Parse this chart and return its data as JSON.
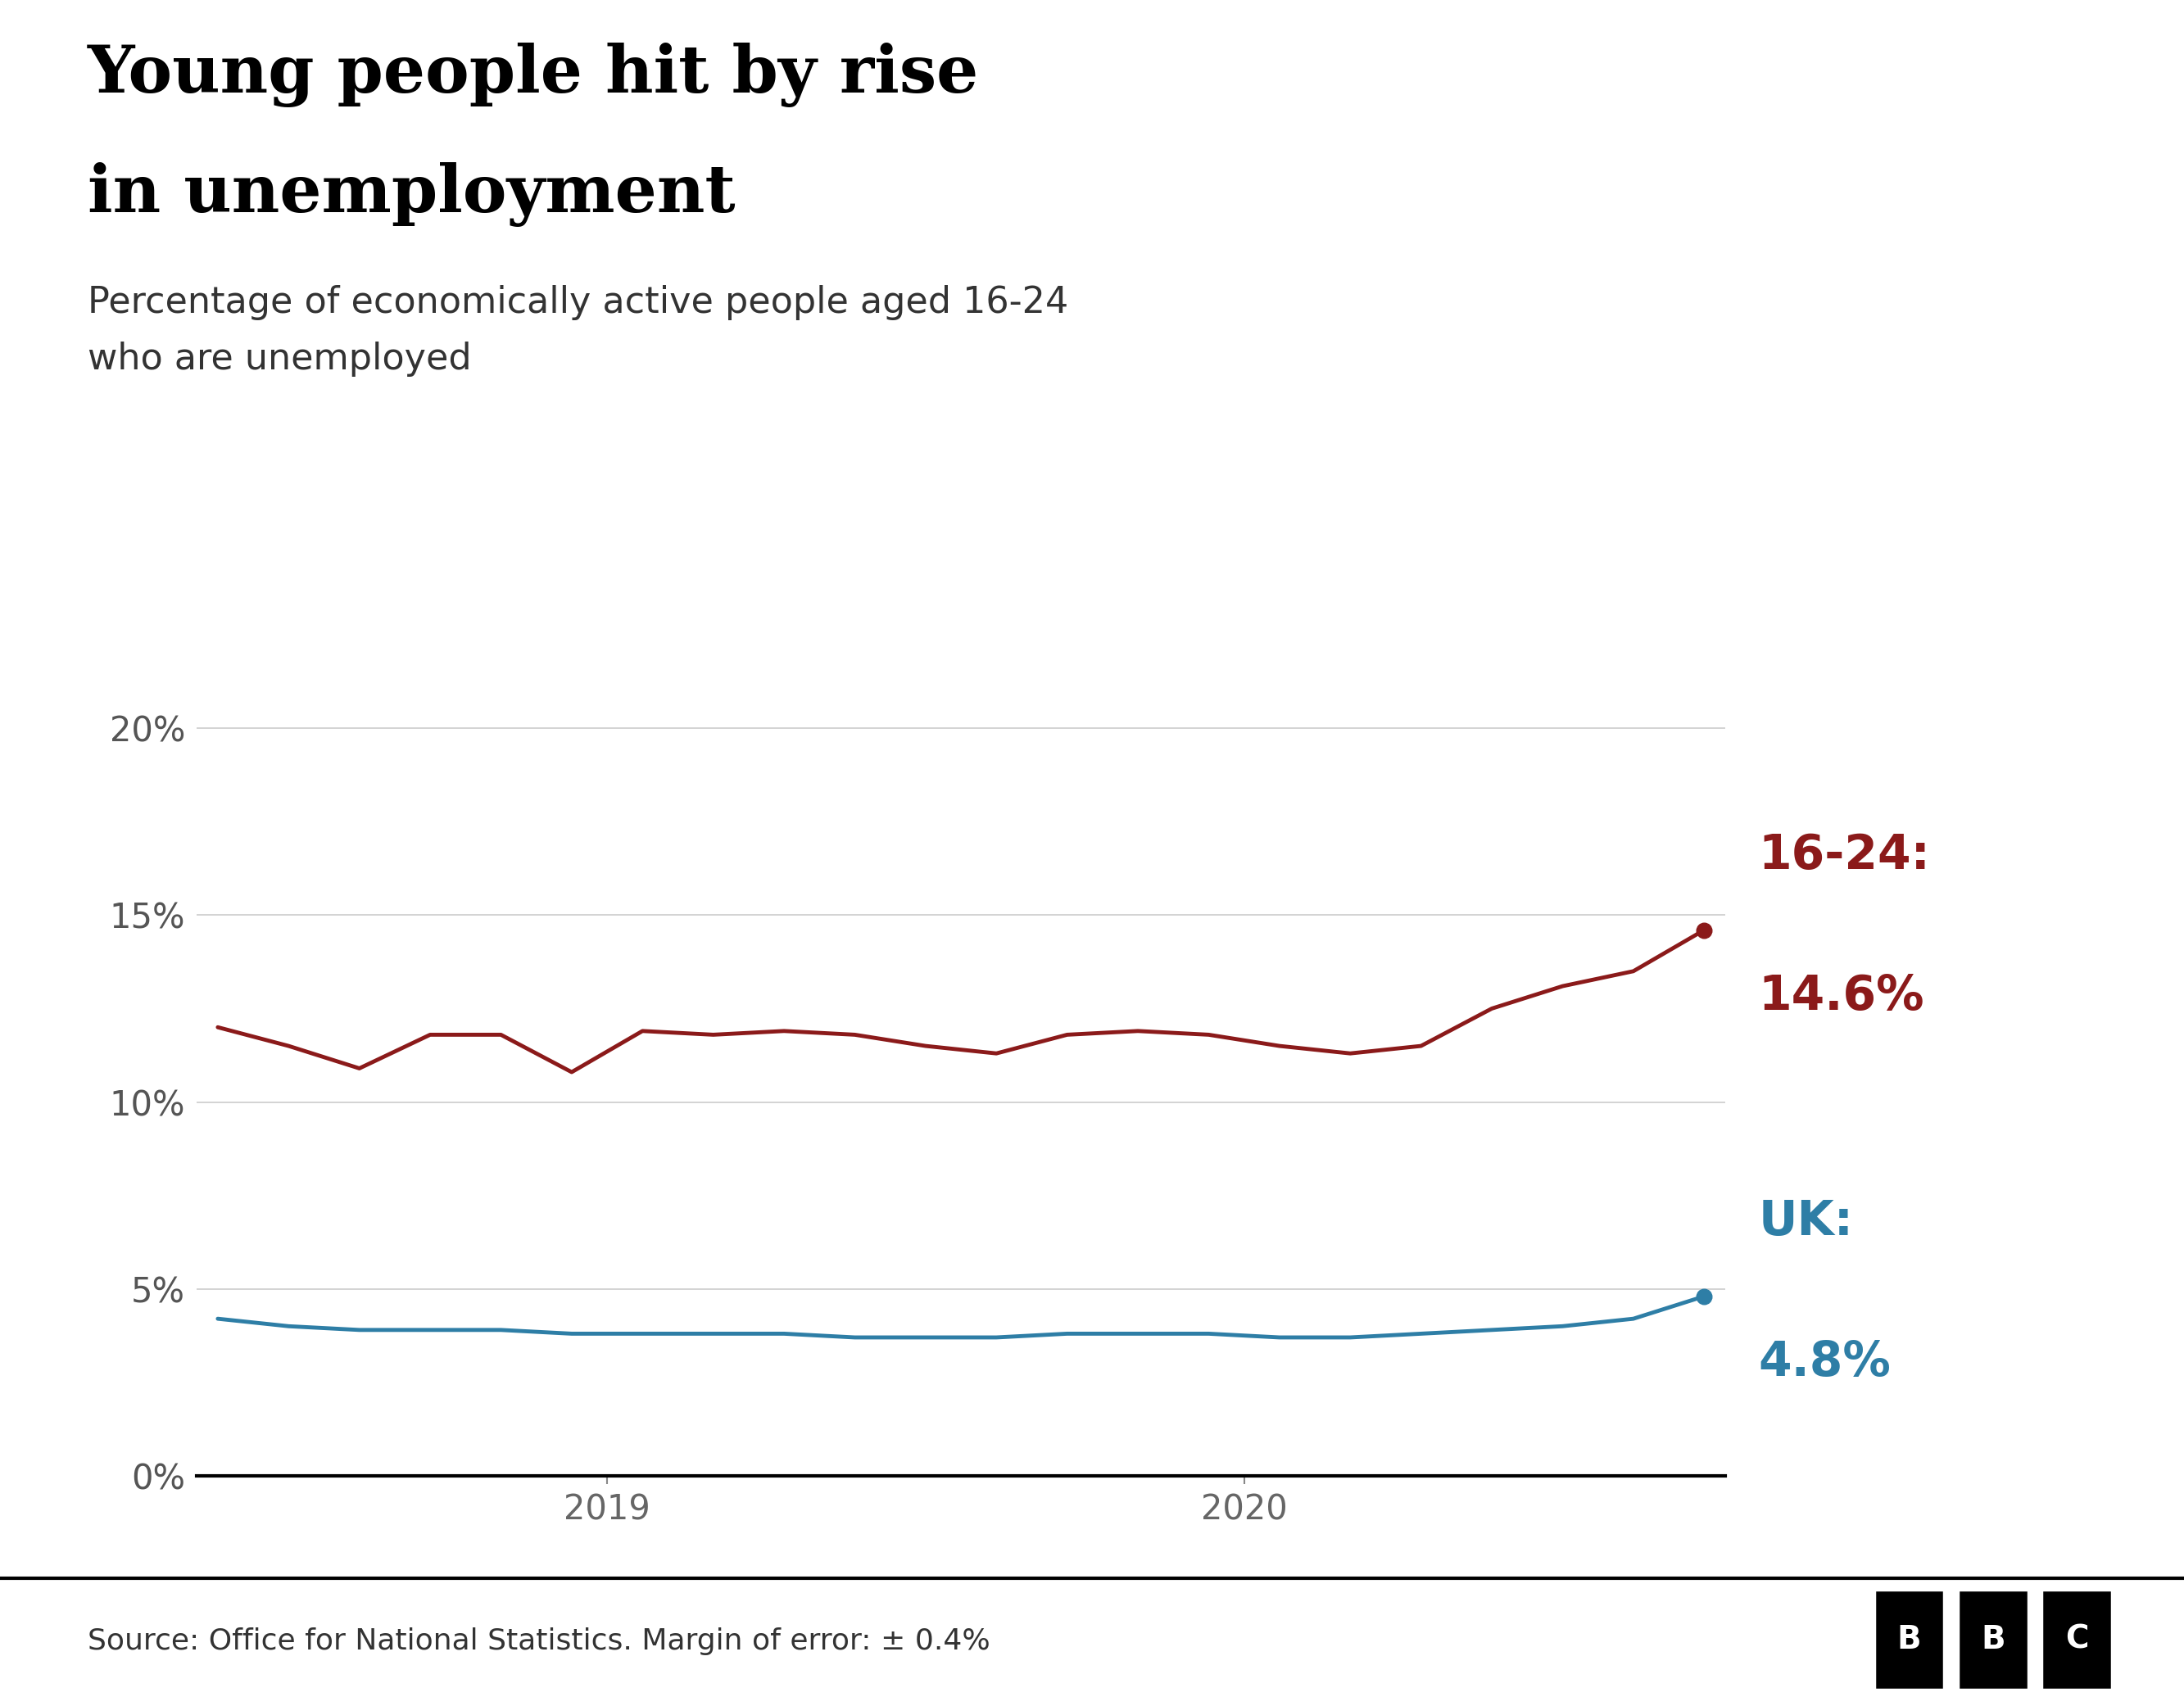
{
  "title_line1": "Young people hit by rise",
  "title_line2": "in unemployment",
  "subtitle_line1": "Percentage of economically active people aged 16-24",
  "subtitle_line2": "who are unemployed",
  "source_text": "Source: Office for National Statistics. Margin of error: ± 0.4%",
  "background_color": "#ffffff",
  "youth_color": "#8b1a1a",
  "uk_color": "#2e7ea6",
  "youth_label": "16-24:",
  "youth_value": "14.6%",
  "uk_label": "UK:",
  "uk_value": "4.8%",
  "ylim": [
    0,
    21
  ],
  "yticks": [
    0,
    5,
    10,
    15,
    20
  ],
  "ytick_labels": [
    "0%",
    "5%",
    "10%",
    "15%",
    "20%"
  ],
  "x_youth": [
    0,
    1,
    2,
    3,
    4,
    5,
    6,
    7,
    8,
    9,
    10,
    11,
    12,
    13,
    14,
    15,
    16,
    17,
    18,
    19,
    20,
    21
  ],
  "y_youth": [
    12.0,
    11.5,
    10.9,
    11.8,
    11.8,
    10.8,
    11.9,
    11.8,
    11.9,
    11.8,
    11.5,
    11.3,
    11.8,
    11.9,
    11.8,
    11.5,
    11.3,
    11.5,
    12.5,
    13.1,
    13.5,
    14.6
  ],
  "x_uk": [
    0,
    1,
    2,
    3,
    4,
    5,
    6,
    7,
    8,
    9,
    10,
    11,
    12,
    13,
    14,
    15,
    16,
    17,
    18,
    19,
    20,
    21
  ],
  "y_uk": [
    4.2,
    4.0,
    3.9,
    3.9,
    3.9,
    3.8,
    3.8,
    3.8,
    3.8,
    3.7,
    3.7,
    3.7,
    3.8,
    3.8,
    3.8,
    3.7,
    3.7,
    3.8,
    3.9,
    4.0,
    4.2,
    4.8
  ],
  "n_points": 22,
  "x_2019_tick": 5.5,
  "x_2020_tick": 14.5,
  "title_fontsize": 58,
  "subtitle_fontsize": 32,
  "tick_fontsize": 30,
  "label_fontsize": 42,
  "source_fontsize": 26,
  "line_width": 3.5,
  "dot_size": 180
}
